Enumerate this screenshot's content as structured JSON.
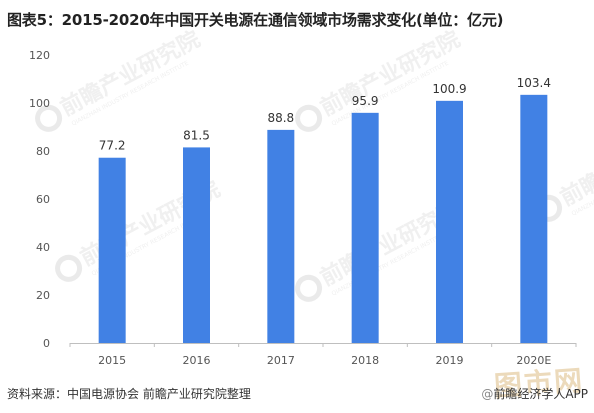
{
  "title": "图表5：2015-2020年中国开关电源在通信领域市场需求变化(单位：亿元)",
  "source": "资料来源：中国电源协会 前瞻产业研究院整理",
  "credit": "前瞻经济学人APP",
  "watermark": {
    "mark_text": "前瞻产业研究院",
    "mark_subtext": "QIANZHAN INDUSTRY RESEARCH INSTITUTE",
    "stamp_text": "图市网"
  },
  "colors": {
    "bar": "#4181e4",
    "axis": "#bfbfbf",
    "label": "#333333",
    "tick": "#555555"
  },
  "chart_data": {
    "type": "bar",
    "categories": [
      "2015",
      "2016",
      "2017",
      "2018",
      "2019",
      "2020E"
    ],
    "values": [
      77.2,
      81.5,
      88.8,
      95.9,
      100.9,
      103.4
    ],
    "value_labels": [
      "77.2",
      "81.5",
      "88.8",
      "95.9",
      "100.9",
      "103.4"
    ],
    "yticks": [
      "0",
      "20",
      "40",
      "60",
      "80",
      "100",
      "120"
    ],
    "ylim": [
      0,
      120
    ],
    "grid": false,
    "legend": "none"
  }
}
